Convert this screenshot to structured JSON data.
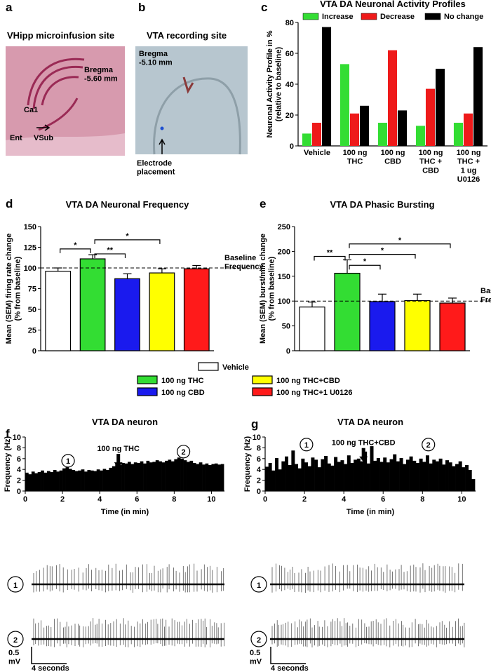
{
  "panels": [
    "a",
    "b",
    "c",
    "d",
    "e",
    "f",
    "g"
  ],
  "histology": [
    {
      "title": "VHipp microinfusion site",
      "bregma": "Bregma\n-5.60 mm",
      "labels": [
        "Ca1",
        "Ent",
        "VSub"
      ]
    },
    {
      "title": "VTA recording site",
      "bregma": "Bregma\n-5.10 mm",
      "labels": [
        "Electrode\nplacement"
      ]
    }
  ],
  "legend": [
    {
      "name": "Vehicle",
      "color": "#ffffff"
    },
    {
      "name": "100 ng THC",
      "color": "#33dd33"
    },
    {
      "name": "100 ng THC+CBD",
      "color": "#ffff00"
    },
    {
      "name": "100 ng CBD",
      "color": "#1a1aee"
    },
    {
      "name": "100 ng THC+1 U0126",
      "color": "#ff1a1a"
    }
  ],
  "chart_data": [
    {
      "type": "bar",
      "title": "VTA DA Neuronal Activity Profiles",
      "ylabel": "Neuronal Activity Profile in %\n(relative to baseline)",
      "categories": [
        "Vehicle",
        "100 ng\nTHC",
        "100 ng\nCBD",
        "100 ng\nTHC +\nCBD",
        "100 ng\nTHC +\n1 ug\nU0126"
      ],
      "series": [
        {
          "name": "Increase",
          "color": "#33dd33",
          "values": [
            8,
            53,
            15,
            13,
            15
          ]
        },
        {
          "name": "Decrease",
          "color": "#ee1a1a",
          "values": [
            15,
            21,
            62,
            37,
            21
          ]
        },
        {
          "name": "No change",
          "color": "#000000",
          "values": [
            77,
            26,
            23,
            50,
            64
          ]
        }
      ],
      "ylim": [
        0,
        80
      ],
      "yticks": [
        0,
        20,
        40,
        60,
        80
      ]
    },
    {
      "type": "bar",
      "title": "VTA DA Neuronal Frequency",
      "ylabel": "Mean (SEM) firing rate change\n(% from baseline)",
      "categories": [
        null,
        null,
        null,
        null,
        null
      ],
      "colors": [
        "#ffffff",
        "#33dd33",
        "#1a1aee",
        "#ffff00",
        "#ff1a1a"
      ],
      "values": [
        96,
        111,
        87,
        94,
        99
      ],
      "errors": [
        4,
        5,
        6,
        5,
        4
      ],
      "ylim": [
        0,
        150
      ],
      "yticks": [
        0,
        25,
        50,
        75,
        100,
        125,
        150
      ],
      "baseline": 100,
      "baseline_label": "Baseline\nFrequency",
      "significance": [
        {
          "pair": [
            0,
            1
          ],
          "y": 123,
          "label": "*"
        },
        {
          "pair": [
            1,
            2
          ],
          "y": 117,
          "label": "**"
        },
        {
          "pair": [
            1,
            3
          ],
          "y": 134,
          "label": "*"
        }
      ]
    },
    {
      "type": "bar",
      "title": "VTA DA Phasic Bursting",
      "ylabel": "Mean (SEM) burst/min change\n(% from baseline)",
      "categories": [
        null,
        null,
        null,
        null,
        null
      ],
      "colors": [
        "#ffffff",
        "#33dd33",
        "#1a1aee",
        "#ffff00",
        "#ff1a1a"
      ],
      "values": [
        88,
        156,
        99,
        101,
        96
      ],
      "errors": [
        10,
        27,
        15,
        13,
        10
      ],
      "ylim": [
        0,
        250
      ],
      "yticks": [
        0,
        50,
        100,
        150,
        200,
        250
      ],
      "baseline": 100,
      "baseline_label": "Baseline\nFrequency",
      "significance": [
        {
          "pair": [
            0,
            1
          ],
          "y": 190,
          "label": "**"
        },
        {
          "pair": [
            1,
            2
          ],
          "y": 172,
          "label": "*"
        },
        {
          "pair": [
            1,
            3
          ],
          "y": 194,
          "label": "*"
        },
        {
          "pair": [
            1,
            4
          ],
          "y": 215,
          "label": "*"
        }
      ]
    },
    {
      "type": "histogram",
      "title": "VTA DA neuron",
      "xlabel": "Time (in min)",
      "ylabel": "Frequency (Hz)",
      "bins": [
        0,
        0.167,
        0.333,
        0.5,
        0.667,
        0.833,
        1,
        1.167,
        1.333,
        1.5,
        1.667,
        1.833,
        2,
        2.167,
        2.333,
        2.5,
        2.667,
        2.833,
        3,
        3.167,
        3.333,
        3.5,
        3.667,
        3.833,
        4,
        4.167,
        4.333,
        4.5,
        4.667,
        4.833,
        5,
        5.167,
        5.333,
        5.5,
        5.667,
        5.833,
        6,
        6.167,
        6.333,
        6.5,
        6.667,
        6.833,
        7,
        7.167,
        7.333,
        7.5,
        7.667,
        7.833,
        8,
        8.167,
        8.333,
        8.5,
        8.667,
        8.833,
        9,
        9.167,
        9.333,
        9.5,
        9.667,
        9.833,
        10,
        10.167,
        10.333,
        10.5,
        10.667
      ],
      "values": [
        3.4,
        3.1,
        3.6,
        3.3,
        3.5,
        3.8,
        3.4,
        3.7,
        3.5,
        3.9,
        3.6,
        3.8,
        4.2,
        4.4,
        4.1,
        3.9,
        3.7,
        3.8,
        4.0,
        3.6,
        3.9,
        3.8,
        3.7,
        4.0,
        3.8,
        4.1,
        3.9,
        4.3,
        4.6,
        5.0,
        4.8,
        5.2,
        5.1,
        5.4,
        5.0,
        5.3,
        5.2,
        5.5,
        5.1,
        5.6,
        5.3,
        5.4,
        5.7,
        5.5,
        5.3,
        5.6,
        5.8,
        5.5,
        5.9,
        6.2,
        6.0,
        5.7,
        5.4,
        5.6,
        5.2,
        5.0,
        5.3,
        4.9,
        5.1,
        4.8,
        5.0,
        5.1,
        4.9,
        5.0
      ],
      "color": "#000000",
      "xlim": [
        0,
        10.7
      ],
      "xticks": [
        0,
        2,
        4,
        6,
        8,
        10
      ],
      "ylim": [
        0,
        10
      ],
      "yticks": [
        0,
        2,
        4,
        6,
        8,
        10
      ],
      "annotations": [
        {
          "text": "100 ng THC",
          "x": 5,
          "y": 7.9,
          "arrow": true
        },
        {
          "text": "1",
          "x": 2.3,
          "y": 5.6,
          "circle": true
        },
        {
          "text": "2",
          "x": 8.5,
          "y": 7.3,
          "circle": true
        }
      ]
    },
    {
      "type": "histogram",
      "title": "VTA DA neuron",
      "xlabel": "Time (in min)",
      "ylabel": "Frequency (Hz)",
      "bins": [
        0,
        0.167,
        0.333,
        0.5,
        0.667,
        0.833,
        1,
        1.167,
        1.333,
        1.5,
        1.667,
        1.833,
        2,
        2.167,
        2.333,
        2.5,
        2.667,
        2.833,
        3,
        3.167,
        3.333,
        3.5,
        3.667,
        3.833,
        4,
        4.167,
        4.333,
        4.5,
        4.667,
        4.833,
        5,
        5.167,
        5.333,
        5.5,
        5.667,
        5.833,
        6,
        6.167,
        6.333,
        6.5,
        6.667,
        6.833,
        7,
        7.167,
        7.333,
        7.5,
        7.667,
        7.833,
        8,
        8.167,
        8.333,
        8.5,
        8.667,
        8.833,
        9,
        9.167,
        9.333,
        9.5,
        9.667,
        9.833,
        10,
        10.167,
        10.333,
        10.5,
        10.667
      ],
      "values": [
        4.5,
        5.2,
        3.8,
        6.1,
        4.0,
        5.5,
        6.4,
        4.8,
        7.5,
        5.0,
        4.2,
        6.0,
        5.3,
        4.6,
        6.2,
        5.8,
        4.4,
        5.9,
        6.5,
        5.1,
        4.7,
        6.3,
        5.4,
        5.7,
        5.0,
        6.6,
        5.2,
        5.8,
        6.0,
        5.5,
        7.3,
        5.1,
        8.3,
        5.6,
        6.1,
        5.4,
        6.2,
        5.3,
        5.9,
        6.8,
        5.5,
        6.1,
        5.0,
        5.8,
        6.4,
        5.6,
        5.2,
        6.0,
        5.4,
        6.6,
        5.1,
        5.8,
        5.5,
        6.0,
        4.9,
        5.7,
        5.3,
        4.6,
        5.0,
        5.5,
        4.4,
        4.8,
        3.9,
        2.2
      ],
      "color": "#000000",
      "xlim": [
        0,
        10.7
      ],
      "xticks": [
        0,
        2,
        4,
        6,
        8,
        10
      ],
      "ylim": [
        0,
        10
      ],
      "yticks": [
        0,
        2,
        4,
        6,
        8,
        10
      ],
      "annotations": [
        {
          "text": "100 ng THC+CBD",
          "x": 5,
          "y": 9.0,
          "arrow": true
        },
        {
          "text": "1",
          "x": 2.1,
          "y": 8.6,
          "circle": true
        },
        {
          "text": "2",
          "x": 8.3,
          "y": 8.6,
          "circle": true
        }
      ]
    }
  ],
  "traces": [
    {
      "labels": [
        "1",
        "2"
      ],
      "scale": [
        "0.5\nmV",
        "4 seconds"
      ]
    },
    {
      "labels": [
        "1",
        "2"
      ],
      "scale": [
        "0.5\nmV",
        "4 seconds"
      ]
    }
  ]
}
